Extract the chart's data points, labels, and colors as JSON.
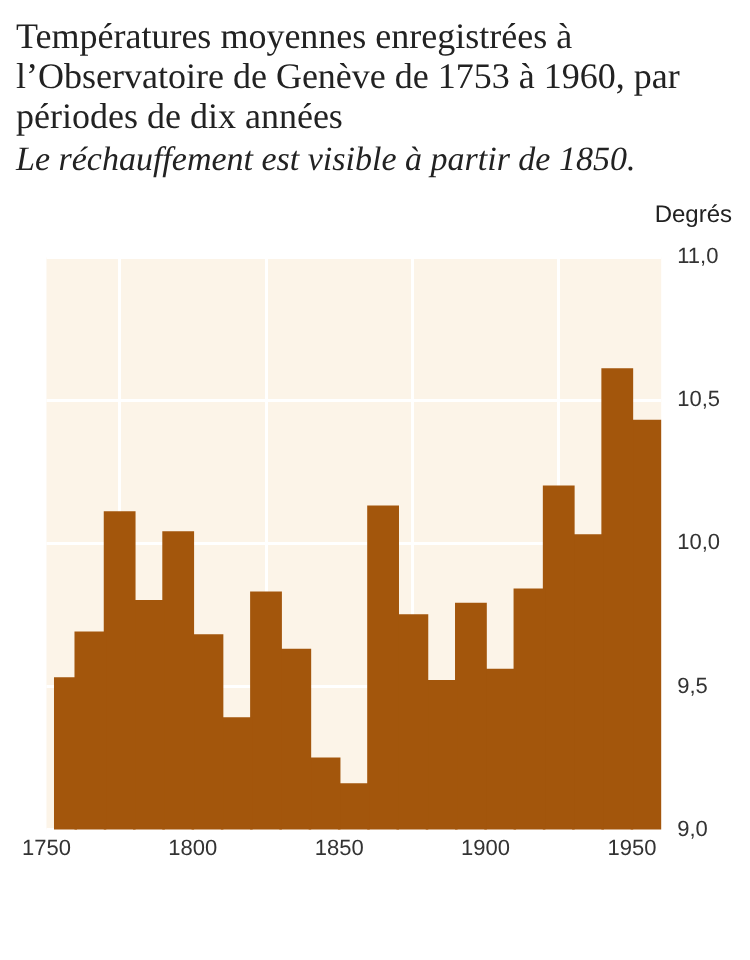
{
  "chart_data": {
    "type": "histogram",
    "title": "Températures moyennes enregistrées à l’Observatoire de Genève de 1753 à 1960, par périodes de dix années",
    "subtitle": "Le réchauffement est visible à partir de 1850.",
    "ylabel": "Degrés",
    "bins": [
      1753,
      1760,
      1770,
      1780,
      1790,
      1800,
      1810,
      1820,
      1830,
      1840,
      1850,
      1860,
      1870,
      1880,
      1890,
      1900,
      1910,
      1920,
      1930,
      1940,
      1950,
      1960
    ],
    "values": [
      9.53,
      9.69,
      10.11,
      9.8,
      10.04,
      9.68,
      9.39,
      9.83,
      9.63,
      9.25,
      9.16,
      10.13,
      9.75,
      9.52,
      9.79,
      9.56,
      9.84,
      10.2,
      10.03,
      10.61,
      10.43
    ],
    "color": "#a3560c",
    "xlim": [
      1750,
      1960
    ],
    "xticks": [
      1750,
      1800,
      1850,
      1900,
      1950
    ],
    "ylim": [
      9,
      11
    ],
    "yticks": [
      {
        "value": 9,
        "label": "9,0"
      },
      {
        "value": 9.5,
        "label": "9,5"
      },
      {
        "value": 10,
        "label": "10,0"
      },
      {
        "value": 10.5,
        "label": "10,5"
      },
      {
        "value": 11,
        "label": "11,0"
      }
    ],
    "grid": true,
    "legend": false
  }
}
